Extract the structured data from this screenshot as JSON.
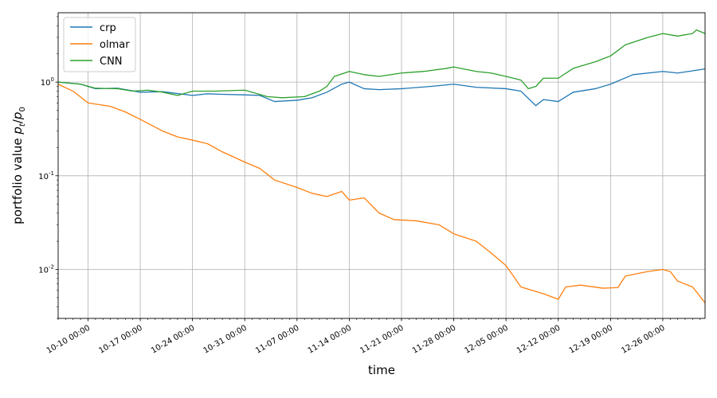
{
  "chart_data": {
    "type": "line",
    "title": "",
    "xlabel": "time",
    "ylabel": "portfolio value p_t/p_0",
    "y_scale": "log",
    "ylim": [
      0.003,
      5.5
    ],
    "xlim": [
      "2016-10-06 00:00",
      "2016-12-31 16:00"
    ],
    "grid": true,
    "legend_position": "top-left",
    "y_ticks": [
      {
        "value": 1,
        "mantissa": "10",
        "exponent": "0"
      },
      {
        "value": 0.1,
        "mantissa": "10",
        "exponent": "-1"
      },
      {
        "value": 0.01,
        "mantissa": "10",
        "exponent": "-2"
      }
    ],
    "x_ticks": [
      {
        "date": "2016-10-10",
        "label": "10-10 00:00"
      },
      {
        "date": "2016-10-17",
        "label": "10-17 00:00"
      },
      {
        "date": "2016-10-24",
        "label": "10-24 00:00"
      },
      {
        "date": "2016-10-31",
        "label": "10-31 00:00"
      },
      {
        "date": "2016-11-07",
        "label": "11-07 00:00"
      },
      {
        "date": "2016-11-14",
        "label": "11-14 00:00"
      },
      {
        "date": "2016-11-21",
        "label": "11-21 00:00"
      },
      {
        "date": "2016-11-28",
        "label": "11-28 00:00"
      },
      {
        "date": "2016-12-05",
        "label": "12-05 00:00"
      },
      {
        "date": "2016-12-12",
        "label": "12-12 00:00"
      },
      {
        "date": "2016-12-19",
        "label": "12-19 00:00"
      },
      {
        "date": "2016-12-26",
        "label": "12-26 00:00"
      }
    ],
    "series": [
      {
        "name": "crp",
        "color": "#1f77b4",
        "points": [
          [
            "2016-10-06",
            1.0
          ],
          [
            "2016-10-09",
            0.95
          ],
          [
            "2016-10-11",
            0.85
          ],
          [
            "2016-10-14",
            0.86
          ],
          [
            "2016-10-17",
            0.78
          ],
          [
            "2016-10-20",
            0.79
          ],
          [
            "2016-10-24",
            0.72
          ],
          [
            "2016-10-26",
            0.75
          ],
          [
            "2016-10-28",
            0.74
          ],
          [
            "2016-10-31",
            0.73
          ],
          [
            "2016-11-02",
            0.72
          ],
          [
            "2016-11-04",
            0.62
          ],
          [
            "2016-11-07",
            0.64
          ],
          [
            "2016-11-09",
            0.68
          ],
          [
            "2016-11-11",
            0.78
          ],
          [
            "2016-11-13",
            0.95
          ],
          [
            "2016-11-14",
            1.0
          ],
          [
            "2016-11-16",
            0.85
          ],
          [
            "2016-11-18",
            0.83
          ],
          [
            "2016-11-21",
            0.85
          ],
          [
            "2016-11-25",
            0.9
          ],
          [
            "2016-11-28",
            0.95
          ],
          [
            "2016-12-01",
            0.88
          ],
          [
            "2016-12-05",
            0.85
          ],
          [
            "2016-12-07",
            0.8
          ],
          [
            "2016-12-09",
            0.56
          ],
          [
            "2016-12-10",
            0.65
          ],
          [
            "2016-12-12",
            0.62
          ],
          [
            "2016-12-14",
            0.78
          ],
          [
            "2016-12-17",
            0.85
          ],
          [
            "2016-12-19",
            0.95
          ],
          [
            "2016-12-22",
            1.2
          ],
          [
            "2016-12-26",
            1.3
          ],
          [
            "2016-12-28",
            1.25
          ],
          [
            "2016-12-31 16:00",
            1.38
          ]
        ]
      },
      {
        "name": "olmar",
        "color": "#ff7f0e",
        "points": [
          [
            "2016-10-06",
            0.95
          ],
          [
            "2016-10-08",
            0.8
          ],
          [
            "2016-10-10",
            0.6
          ],
          [
            "2016-10-13",
            0.55
          ],
          [
            "2016-10-15",
            0.48
          ],
          [
            "2016-10-17",
            0.4
          ],
          [
            "2016-10-20",
            0.3
          ],
          [
            "2016-10-22",
            0.26
          ],
          [
            "2016-10-24",
            0.24
          ],
          [
            "2016-10-26",
            0.22
          ],
          [
            "2016-10-28",
            0.18
          ],
          [
            "2016-10-31",
            0.14
          ],
          [
            "2016-11-02",
            0.12
          ],
          [
            "2016-11-04",
            0.09
          ],
          [
            "2016-11-07",
            0.075
          ],
          [
            "2016-11-09",
            0.065
          ],
          [
            "2016-11-11",
            0.06
          ],
          [
            "2016-11-13",
            0.068
          ],
          [
            "2016-11-14",
            0.055
          ],
          [
            "2016-11-16",
            0.058
          ],
          [
            "2016-11-18",
            0.04
          ],
          [
            "2016-11-20",
            0.034
          ],
          [
            "2016-11-23",
            0.033
          ],
          [
            "2016-11-26",
            0.03
          ],
          [
            "2016-11-28",
            0.024
          ],
          [
            "2016-12-01",
            0.02
          ],
          [
            "2016-12-03",
            0.015
          ],
          [
            "2016-12-05",
            0.011
          ],
          [
            "2016-12-07",
            0.0065
          ],
          [
            "2016-12-10",
            0.0055
          ],
          [
            "2016-12-12",
            0.0048
          ],
          [
            "2016-12-13",
            0.0065
          ],
          [
            "2016-12-15",
            0.0068
          ],
          [
            "2016-12-18",
            0.0063
          ],
          [
            "2016-12-20",
            0.0064
          ],
          [
            "2016-12-21",
            0.0085
          ],
          [
            "2016-12-24",
            0.0095
          ],
          [
            "2016-12-26",
            0.01
          ],
          [
            "2016-12-27",
            0.0095
          ],
          [
            "2016-12-28",
            0.0075
          ],
          [
            "2016-12-30",
            0.0065
          ],
          [
            "2016-12-31 16:00",
            0.0044
          ]
        ]
      },
      {
        "name": "CNN",
        "color": "#2ca02c",
        "points": [
          [
            "2016-10-06",
            1.0
          ],
          [
            "2016-10-09",
            0.95
          ],
          [
            "2016-10-11",
            0.86
          ],
          [
            "2016-10-14",
            0.85
          ],
          [
            "2016-10-16",
            0.8
          ],
          [
            "2016-10-18",
            0.82
          ],
          [
            "2016-10-20",
            0.78
          ],
          [
            "2016-10-22",
            0.72
          ],
          [
            "2016-10-24",
            0.8
          ],
          [
            "2016-10-27",
            0.8
          ],
          [
            "2016-10-31",
            0.82
          ],
          [
            "2016-11-03",
            0.7
          ],
          [
            "2016-11-05",
            0.68
          ],
          [
            "2016-11-08",
            0.7
          ],
          [
            "2016-11-10",
            0.8
          ],
          [
            "2016-11-11",
            0.9
          ],
          [
            "2016-11-12",
            1.15
          ],
          [
            "2016-11-14",
            1.3
          ],
          [
            "2016-11-16",
            1.2
          ],
          [
            "2016-11-18",
            1.15
          ],
          [
            "2016-11-21",
            1.25
          ],
          [
            "2016-11-24",
            1.3
          ],
          [
            "2016-11-27",
            1.4
          ],
          [
            "2016-11-28",
            1.45
          ],
          [
            "2016-12-01",
            1.3
          ],
          [
            "2016-12-03",
            1.25
          ],
          [
            "2016-12-05",
            1.15
          ],
          [
            "2016-12-07",
            1.05
          ],
          [
            "2016-12-08",
            0.85
          ],
          [
            "2016-12-09",
            0.9
          ],
          [
            "2016-12-10",
            1.1
          ],
          [
            "2016-12-12",
            1.1
          ],
          [
            "2016-12-14",
            1.4
          ],
          [
            "2016-12-17",
            1.65
          ],
          [
            "2016-12-19",
            1.9
          ],
          [
            "2016-12-21",
            2.5
          ],
          [
            "2016-12-24",
            3.0
          ],
          [
            "2016-12-26",
            3.3
          ],
          [
            "2016-12-28",
            3.1
          ],
          [
            "2016-12-30",
            3.3
          ],
          [
            "2016-12-30 12:00",
            3.6
          ],
          [
            "2016-12-31 16:00",
            3.3
          ]
        ]
      }
    ]
  }
}
